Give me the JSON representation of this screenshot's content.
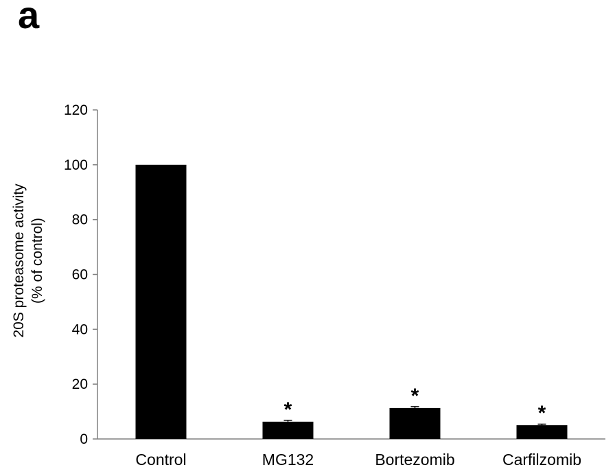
{
  "figure": {
    "panel_label": "a"
  },
  "chart_data": {
    "type": "bar",
    "title": "",
    "xlabel": "",
    "ylabel_lines": [
      "20S proteasome activity",
      "(% of control)"
    ],
    "categories": [
      "Control",
      "MG132",
      "Bortezomib",
      "Carfilzomib"
    ],
    "values": [
      100,
      6.3,
      11.3,
      5.0
    ],
    "errors": [
      0,
      0.5,
      0.5,
      0.4
    ],
    "significance": [
      "",
      "*",
      "*",
      "*"
    ],
    "ylim": [
      0,
      120
    ],
    "yticks": [
      0,
      20,
      40,
      60,
      80,
      100,
      120
    ],
    "grid": false,
    "legend": "none",
    "bar_color": "#000000",
    "axis_color": "#808080"
  }
}
